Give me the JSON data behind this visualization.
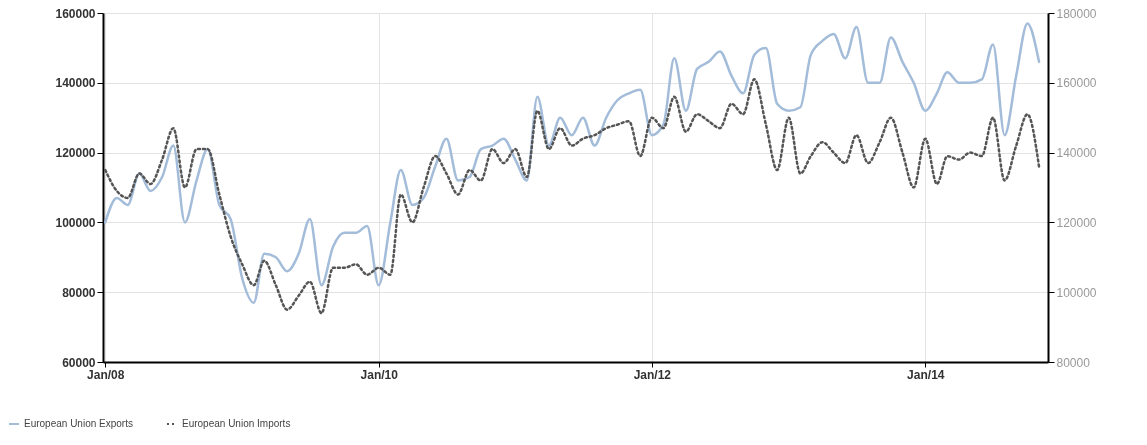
{
  "chart_data": {
    "type": "line",
    "x": [
      "2008-01",
      "2008-02",
      "2008-03",
      "2008-04",
      "2008-05",
      "2008-06",
      "2008-07",
      "2008-08",
      "2008-09",
      "2008-10",
      "2008-11",
      "2008-12",
      "2009-01",
      "2009-02",
      "2009-03",
      "2009-04",
      "2009-05",
      "2009-06",
      "2009-07",
      "2009-08",
      "2009-09",
      "2009-10",
      "2009-11",
      "2009-12",
      "2010-01",
      "2010-02",
      "2010-03",
      "2010-04",
      "2010-05",
      "2010-06",
      "2010-07",
      "2010-08",
      "2010-09",
      "2010-10",
      "2010-11",
      "2010-12",
      "2011-01",
      "2011-02",
      "2011-03",
      "2011-04",
      "2011-05",
      "2011-06",
      "2011-07",
      "2011-08",
      "2011-09",
      "2011-10",
      "2011-11",
      "2011-12",
      "2012-01",
      "2012-02",
      "2012-03",
      "2012-04",
      "2012-05",
      "2012-06",
      "2012-07",
      "2012-08",
      "2012-09",
      "2012-10",
      "2012-11",
      "2012-12",
      "2013-01",
      "2013-02",
      "2013-03",
      "2013-04",
      "2013-05",
      "2013-06",
      "2013-07",
      "2013-08",
      "2013-09",
      "2013-10",
      "2013-11",
      "2013-12",
      "2014-01",
      "2014-02",
      "2014-03",
      "2014-04",
      "2014-05",
      "2014-06",
      "2014-07",
      "2014-08",
      "2014-09",
      "2014-10",
      "2014-11"
    ],
    "series": [
      {
        "name": "European Union Exports",
        "color": "#a3bcd9",
        "line_style": "solid",
        "values": [
          100000,
          107000,
          105000,
          114000,
          109000,
          113000,
          122000,
          100000,
          112000,
          121000,
          105000,
          101000,
          84000,
          77000,
          91000,
          90000,
          86000,
          91000,
          101000,
          82000,
          93000,
          97000,
          97000,
          99000,
          82000,
          100000,
          115000,
          105000,
          107000,
          116000,
          124000,
          112000,
          113000,
          121000,
          122000,
          124000,
          118000,
          112000,
          136000,
          122000,
          130000,
          125000,
          130000,
          122000,
          130000,
          135000,
          137000,
          138000,
          125000,
          128000,
          147000,
          132000,
          144000,
          146000,
          149000,
          142000,
          137000,
          148000,
          150000,
          134000,
          132000,
          133000,
          148000,
          152000,
          154000,
          147000,
          156000,
          140000,
          140000,
          153000,
          146000,
          140000,
          132000,
          137000,
          143000,
          140000,
          140000,
          141000,
          151000,
          125000,
          142000,
          157000,
          146000
        ]
      },
      {
        "name": "European Union Imports",
        "color": "#555555",
        "line_style": "dotted",
        "axis": "y2",
        "values": [
          135000,
          129000,
          127000,
          134000,
          131000,
          138000,
          147000,
          130000,
          141000,
          141000,
          128000,
          116000,
          108000,
          102000,
          109000,
          102000,
          95000,
          99000,
          103000,
          94000,
          107000,
          107000,
          108000,
          105000,
          107000,
          105000,
          128000,
          120000,
          130000,
          139000,
          134000,
          128000,
          135000,
          132000,
          141000,
          137000,
          141000,
          133000,
          152000,
          141000,
          147000,
          142000,
          144000,
          145000,
          147000,
          148000,
          149000,
          139000,
          150000,
          147000,
          156000,
          146000,
          151000,
          149000,
          147000,
          154000,
          151000,
          161000,
          148000,
          135000,
          150000,
          134000,
          139000,
          143000,
          140000,
          137000,
          145000,
          137000,
          143000,
          150000,
          140000,
          130000,
          144000,
          131000,
          139000,
          138000,
          140000,
          139000,
          150000,
          132000,
          142000,
          151000,
          136000
        ]
      }
    ],
    "xlim": [
      "2007-12-26",
      "2014-11-25"
    ],
    "xticks": [
      {
        "value": "2008-01",
        "label": "Jan/08"
      },
      {
        "value": "2010-01",
        "label": "Jan/10"
      },
      {
        "value": "2012-01",
        "label": "Jan/12"
      },
      {
        "value": "2014-01",
        "label": "Jan/14"
      }
    ],
    "ylim": [
      60000,
      160000
    ],
    "yticks": [
      60000,
      80000,
      100000,
      120000,
      140000,
      160000
    ],
    "y2lim": [
      80000,
      180000
    ],
    "y2ticks": [
      80000,
      100000,
      120000,
      140000,
      160000,
      180000
    ],
    "grid": true,
    "legend": "bottom left"
  }
}
